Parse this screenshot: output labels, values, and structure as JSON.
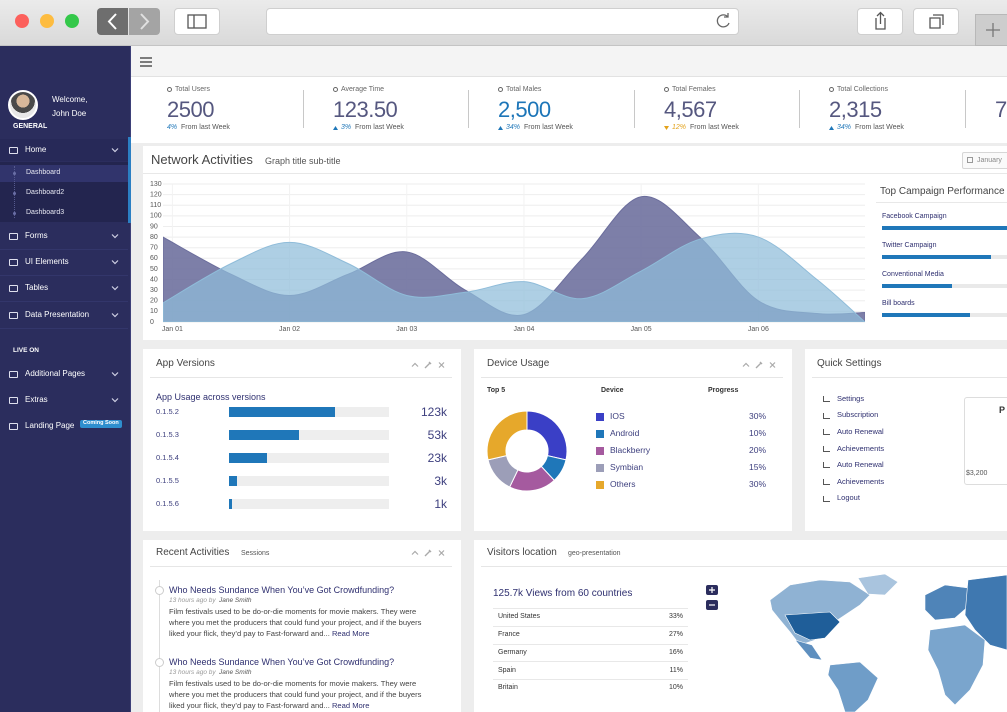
{
  "sidebar": {
    "welcome": "Welcome,",
    "user": "John Doe",
    "role": "GENERAL",
    "menu": [
      {
        "label": "Home",
        "children": [
          "Dashboard",
          "Dashboard2",
          "Dashboard3"
        ]
      },
      {
        "label": "Forms"
      },
      {
        "label": "UI Elements"
      },
      {
        "label": "Tables"
      },
      {
        "label": "Data Presentation"
      }
    ],
    "section": "LIVE ON",
    "menu2": [
      {
        "label": "Additional Pages"
      },
      {
        "label": "Extras"
      },
      {
        "label": "Landing Page",
        "badge": "Coming Soon"
      }
    ]
  },
  "stats": [
    {
      "label": "Total Users",
      "value": "2500",
      "change": "4%",
      "note": "From last Week"
    },
    {
      "label": "Average Time",
      "value": "123.50",
      "change": "3%",
      "note": "From last Week"
    },
    {
      "label": "Total Males",
      "value": "2,500",
      "change": "34%",
      "note": "From last Week"
    },
    {
      "label": "Total Females",
      "value": "4,567",
      "change": "12%",
      "note": "From last Week"
    },
    {
      "label": "Total Collections",
      "value": "2,315",
      "change": "34%",
      "note": "From last Week"
    },
    {
      "value": "7"
    }
  ],
  "network": {
    "date": "January"
  },
  "chart_data": [
    {
      "type": "area",
      "title": "Network Activities",
      "subtitle": "Graph title sub-title",
      "x": [
        -0.08,
        0.5,
        1,
        1.5,
        2,
        2.5,
        3,
        3.5,
        4,
        4.5,
        5,
        5.5,
        5.91
      ],
      "xlim": [
        -0.08,
        5.91
      ],
      "xticks": [
        {
          "value": 0,
          "label": "Jan 01"
        },
        {
          "value": 1,
          "label": "Jan 02"
        },
        {
          "value": 2,
          "label": "Jan 03"
        },
        {
          "value": 3,
          "label": "Jan 04"
        },
        {
          "value": 4,
          "label": "Jan 05"
        },
        {
          "value": 5,
          "label": "Jan 06"
        }
      ],
      "ylim": [
        0,
        130
      ],
      "yticks": [
        0,
        10,
        20,
        30,
        40,
        50,
        60,
        70,
        80,
        90,
        100,
        110,
        120,
        130
      ],
      "grid": true,
      "series": [
        {
          "color": "#6b6d9c",
          "values": [
            80,
            45,
            25,
            45,
            66,
            30,
            7,
            60,
            118,
            80,
            20,
            8,
            9
          ]
        },
        {
          "color": "#8fbcd9",
          "values": [
            18,
            55,
            75,
            55,
            25,
            28,
            38,
            22,
            48,
            78,
            80,
            40,
            0
          ]
        }
      ]
    },
    {
      "type": "hbar",
      "title": "Top Campaign Performance",
      "categories": [
        "Facebook Campaign",
        "Twitter Campaign",
        "Conventional Media",
        "Bill boards"
      ],
      "values": [
        85,
        68,
        44,
        55
      ],
      "xlim": [
        0,
        100
      ],
      "color": "#1f77b9"
    },
    {
      "type": "hbar",
      "title": "App Versions",
      "subtitle": "App Usage across versions",
      "categories": [
        "0.1.5.2",
        "0.1.5.3",
        "0.1.5.4",
        "0.1.5.5",
        "0.1.5.6"
      ],
      "values": [
        66,
        44,
        24,
        5,
        2
      ],
      "usage": [
        "123k",
        "53k",
        "23k",
        "3k",
        "1k"
      ],
      "xlim": [
        0,
        100
      ],
      "color": "#1f77b9"
    },
    {
      "type": "donut",
      "title": "Device Usage",
      "columns": [
        "Top 5",
        "Device",
        "Progress"
      ],
      "categories": [
        "IOS",
        "Android",
        "Blackberry",
        "Symbian",
        "Others"
      ],
      "values": [
        30,
        10,
        20,
        15,
        30
      ],
      "value_labels": [
        "30%",
        "10%",
        "20%",
        "15%",
        "30%"
      ],
      "colors": [
        "#3a3fc6",
        "#1f77b9",
        "#a55a9f",
        "#9c9eb8",
        "#e6a82b"
      ]
    }
  ],
  "quick_settings": {
    "title": "Quick Settings",
    "items": [
      "Settings",
      "Subscription",
      "Auto Renewal",
      "Achievements",
      "Auto Renewal",
      "Achievements",
      "Logout"
    ],
    "card": {
      "heading": "P",
      "amount": "$3,200"
    }
  },
  "recent": {
    "title": "Recent Activities",
    "subtitle": "Sessions",
    "items": [
      {
        "title": "Who Needs Sundance When You’ve Got Crowdfunding?",
        "time": "13 hours ago by",
        "author": "Jane Smith",
        "body": "Film festivals used to be do-or-die moments for movie makers. They were where you met the producers that could fund your project, and if the buyers liked your flick, they’d pay to Fast-forward and...",
        "link": "Read More"
      },
      {
        "title": "Who Needs Sundance When You’ve Got Crowdfunding?",
        "time": "13 hours ago by",
        "author": "Jane Smith",
        "body": "Film festivals used to be do-or-die moments for movie makers. They were where you met the producers that could fund your project, and if the buyers liked your flick, they’d pay to Fast-forward and...",
        "link": "Read More"
      }
    ]
  },
  "visitors": {
    "title": "Visitors location",
    "subtitle": "geo-presentation",
    "heading": "125.7k Views from 60 countries",
    "rows": [
      [
        "United States",
        "33%"
      ],
      [
        "France",
        "27%"
      ],
      [
        "Germany",
        "16%"
      ],
      [
        "Spain",
        "11%"
      ],
      [
        "Britain",
        "10%"
      ]
    ]
  }
}
